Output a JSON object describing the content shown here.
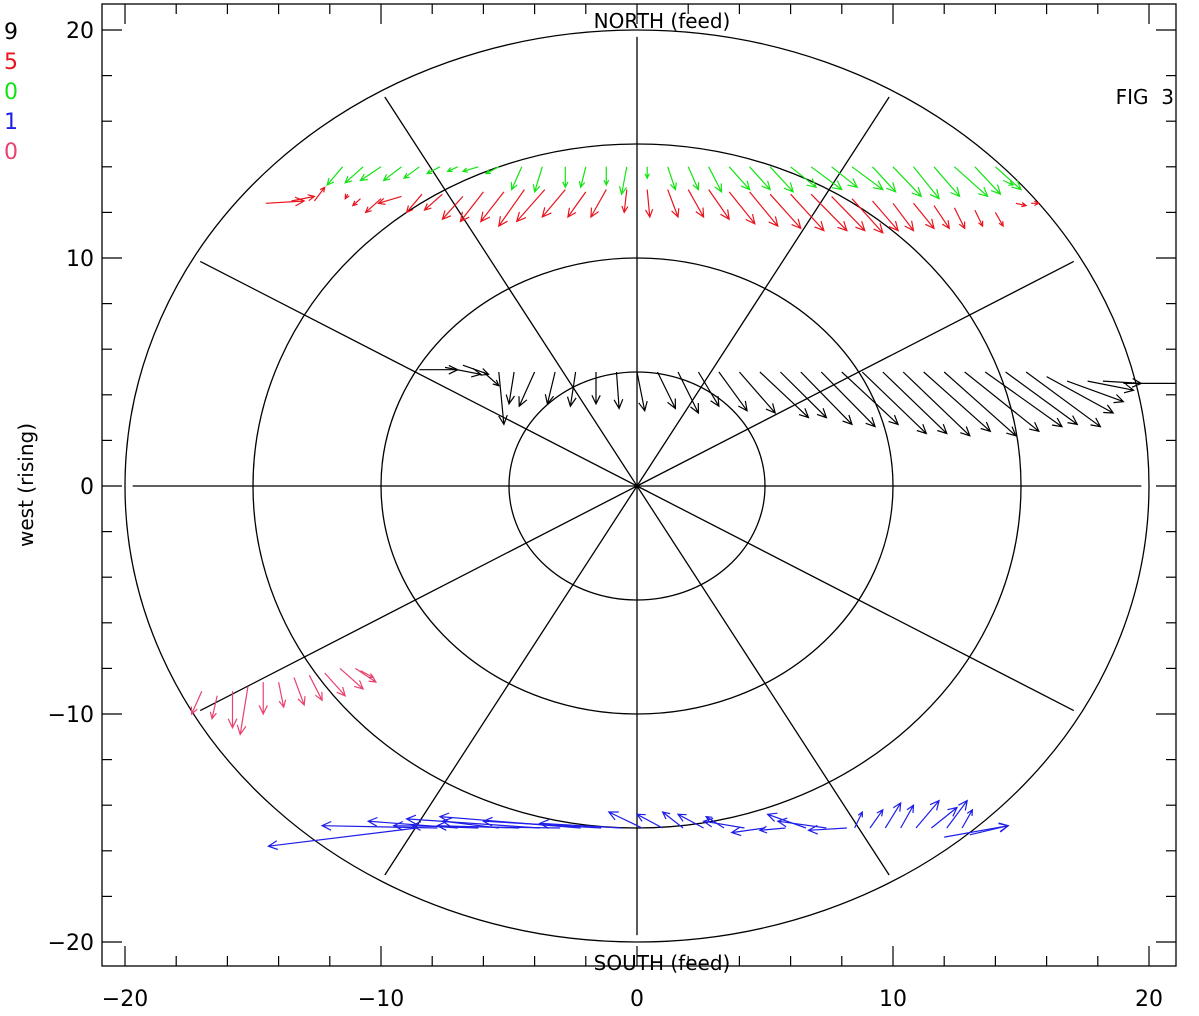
{
  "chart_data": {
    "type": "scatter",
    "subtype": "polar-vector-field",
    "figure_label": "FIG  3",
    "ylabel": "west (rising)",
    "xlabel": "",
    "top_label": "NORTH (feed)",
    "bottom_label": "SOUTH (feed)",
    "xlim": [
      -21,
      21
    ],
    "ylim": [
      -21,
      21
    ],
    "x_ticks": [
      -20,
      -10,
      0,
      10,
      20
    ],
    "y_ticks": [
      -20,
      -10,
      0,
      10,
      20
    ],
    "x_tick_labels": [
      "−20",
      "−10",
      "0",
      "10",
      "20"
    ],
    "y_tick_labels": [
      "−20",
      "−10",
      "0",
      "10",
      "20"
    ],
    "rings": [
      5,
      10,
      15,
      20
    ],
    "spoke_angles_deg": [
      0,
      30,
      60,
      90,
      120,
      150,
      180,
      210,
      240,
      270,
      300,
      330
    ],
    "spoke_length": 19.7,
    "left_legend": [
      {
        "label": "9",
        "color": "#000000"
      },
      {
        "label": "5",
        "color": "#e8141e"
      },
      {
        "label": "0",
        "color": "#13e313"
      },
      {
        "label": "1",
        "color": "#1e1ee8"
      },
      {
        "label": "0",
        "color": "#e8426e"
      }
    ],
    "series": [
      {
        "color": "#13e313",
        "vectors": [
          [
            -11.5,
            14,
            -0.6,
            -0.8
          ],
          [
            -10.7,
            14,
            -0.7,
            -0.7
          ],
          [
            -10,
            14,
            -0.8,
            -0.6
          ],
          [
            -9.2,
            14,
            -0.7,
            -0.6
          ],
          [
            -8.5,
            14,
            -0.6,
            -0.5
          ],
          [
            -7.7,
            14,
            -0.5,
            -0.3
          ],
          [
            -7,
            14,
            -0.4,
            -0.2
          ],
          [
            -6.2,
            14,
            -0.6,
            -0.2
          ],
          [
            -5.4,
            14,
            -0.5,
            -0.3
          ],
          [
            -4.5,
            14,
            -0.4,
            -1.0
          ],
          [
            -3.7,
            14,
            -0.3,
            -1.1
          ],
          [
            -2.8,
            14,
            0.0,
            -0.9
          ],
          [
            -2.0,
            14,
            -0.2,
            -0.9
          ],
          [
            -1.2,
            14,
            0.0,
            -0.8
          ],
          [
            -0.4,
            14,
            -0.2,
            -1.2
          ],
          [
            0.4,
            14,
            0.0,
            -0.5
          ],
          [
            1.2,
            14,
            0.3,
            -1.0
          ],
          [
            2.0,
            14,
            0.4,
            -1.0
          ],
          [
            2.8,
            14,
            0.5,
            -1.1
          ],
          [
            3.6,
            14,
            0.8,
            -1.0
          ],
          [
            4.4,
            14,
            0.8,
            -1.0
          ],
          [
            5.2,
            14,
            0.9,
            -1.1
          ],
          [
            6.0,
            14,
            1.0,
            -0.9
          ],
          [
            6.8,
            14,
            1.2,
            -1.0
          ],
          [
            7.6,
            14,
            1.0,
            -0.9
          ],
          [
            8.4,
            14,
            1.2,
            -1.0
          ],
          [
            9.2,
            14,
            0.9,
            -1.1
          ],
          [
            10.0,
            14,
            1.1,
            -1.3
          ],
          [
            10.8,
            14,
            1.0,
            -1.4
          ],
          [
            11.6,
            14,
            1.0,
            -1.3
          ],
          [
            12.4,
            14,
            1.3,
            -1.3
          ],
          [
            13.2,
            14,
            1.0,
            -1.2
          ],
          [
            14.0,
            14,
            1.0,
            -1.0
          ],
          [
            14.3,
            13.4,
            0.4,
            -0.2
          ]
        ]
      },
      {
        "color": "#e8141e",
        "vectors": [
          [
            -14.5,
            12.4,
            1.5,
            0.1
          ],
          [
            -13.5,
            12.5,
            0.9,
            0.2
          ],
          [
            -12.6,
            12.5,
            0.4,
            0.6
          ],
          [
            -11.3,
            12.8,
            -0.1,
            -0.2
          ],
          [
            -10.8,
            12.6,
            -0.3,
            -0.3
          ],
          [
            -10.0,
            12.6,
            -0.6,
            -0.6
          ],
          [
            -9.2,
            12.7,
            -0.9,
            -0.3
          ],
          [
            -8.4,
            12.8,
            -0.6,
            -0.8
          ],
          [
            -7.6,
            12.8,
            -0.7,
            -0.7
          ],
          [
            -6.8,
            12.7,
            -0.8,
            -1.0
          ],
          [
            -6.0,
            12.9,
            -0.9,
            -1.3
          ],
          [
            -5.2,
            12.9,
            -0.9,
            -1.3
          ],
          [
            -4.4,
            13.0,
            -1.0,
            -1.6
          ],
          [
            -3.6,
            13.0,
            -1.1,
            -1.4
          ],
          [
            -2.8,
            13.0,
            -0.9,
            -1.2
          ],
          [
            -2.0,
            12.9,
            -0.7,
            -1.1
          ],
          [
            -1.2,
            13.0,
            -0.6,
            -1.2
          ],
          [
            -0.4,
            13.0,
            -0.1,
            -1.0
          ],
          [
            0.4,
            13.0,
            0.1,
            -1.2
          ],
          [
            1.2,
            13.0,
            0.4,
            -1.2
          ],
          [
            2.0,
            13.0,
            0.6,
            -1.2
          ],
          [
            2.8,
            13.0,
            0.8,
            -1.3
          ],
          [
            3.6,
            12.9,
            1.0,
            -1.4
          ],
          [
            4.4,
            12.9,
            1.1,
            -1.5
          ],
          [
            5.2,
            12.8,
            1.2,
            -1.5
          ],
          [
            6.0,
            12.8,
            1.3,
            -1.6
          ],
          [
            6.8,
            12.8,
            1.4,
            -1.6
          ],
          [
            7.6,
            12.7,
            1.3,
            -1.5
          ],
          [
            8.4,
            12.6,
            1.2,
            -1.5
          ],
          [
            9.2,
            12.5,
            1.0,
            -1.3
          ],
          [
            10.0,
            12.4,
            0.8,
            -1.2
          ],
          [
            10.8,
            12.4,
            0.8,
            -1.1
          ],
          [
            11.6,
            12.3,
            0.6,
            -1.0
          ],
          [
            12.4,
            12.2,
            0.4,
            -0.9
          ],
          [
            13.2,
            12.1,
            0.3,
            -0.7
          ],
          [
            14.0,
            12.0,
            0.3,
            -0.6
          ],
          [
            14.8,
            12.4,
            0.4,
            -0.1
          ],
          [
            15.4,
            12.4,
            0.3,
            0.0
          ]
        ]
      },
      {
        "color": "#000000",
        "vectors": [
          [
            -8.5,
            5.1,
            1.5,
            0.0
          ],
          [
            -7.5,
            5.2,
            1.4,
            -0.3
          ],
          [
            -6.8,
            5.3,
            1.0,
            -0.4
          ],
          [
            -6.0,
            5.0,
            0.6,
            -0.6
          ],
          [
            -5.4,
            5.0,
            0.2,
            -2.3
          ],
          [
            -4.8,
            5.0,
            -0.2,
            -1.4
          ],
          [
            -4.0,
            5.0,
            -0.6,
            -1.5
          ],
          [
            -3.2,
            5.0,
            -0.3,
            -1.4
          ],
          [
            -2.4,
            5.0,
            -0.2,
            -1.5
          ],
          [
            -1.6,
            5.0,
            0.0,
            -1.4
          ],
          [
            -0.8,
            5.0,
            0.1,
            -1.6
          ],
          [
            0.0,
            5.0,
            0.3,
            -1.7
          ],
          [
            0.8,
            5.0,
            0.7,
            -1.6
          ],
          [
            1.6,
            5.0,
            0.8,
            -1.8
          ],
          [
            2.4,
            5.0,
            0.8,
            -1.5
          ],
          [
            3.2,
            5.0,
            1.1,
            -1.7
          ],
          [
            4.0,
            5.0,
            1.4,
            -1.8
          ],
          [
            4.8,
            5.0,
            1.9,
            -2.0
          ],
          [
            5.6,
            5.0,
            1.8,
            -2.0
          ],
          [
            6.4,
            5.0,
            2.0,
            -2.3
          ],
          [
            7.2,
            5.0,
            2.1,
            -2.4
          ],
          [
            8.0,
            5.0,
            2.2,
            -2.3
          ],
          [
            8.8,
            5.0,
            2.5,
            -2.7
          ],
          [
            9.6,
            5.0,
            2.5,
            -2.7
          ],
          [
            10.4,
            5.0,
            2.6,
            -2.8
          ],
          [
            11.2,
            5.0,
            2.6,
            -2.6
          ],
          [
            12.0,
            5.0,
            2.8,
            -2.8
          ],
          [
            12.8,
            5.0,
            2.9,
            -2.6
          ],
          [
            13.6,
            5.0,
            3.0,
            -2.4
          ],
          [
            14.4,
            5.0,
            2.8,
            -2.3
          ],
          [
            15.2,
            5.0,
            2.9,
            -2.4
          ],
          [
            16.0,
            4.8,
            2.6,
            -1.6
          ],
          [
            16.8,
            4.6,
            2.2,
            -0.9
          ],
          [
            17.6,
            4.6,
            1.8,
            -0.4
          ],
          [
            18.2,
            4.6,
            1.5,
            -0.1
          ],
          [
            19.0,
            4.5,
            3.0,
            0.0
          ]
        ]
      },
      {
        "color": "#1e1ee8",
        "vectors": [
          [
            -8.6,
            -15.0,
            -5.8,
            -0.8
          ],
          [
            -7.8,
            -15.0,
            -4.5,
            0.1
          ],
          [
            -7.0,
            -15.0,
            -3.5,
            0.3
          ],
          [
            -6.2,
            -15.0,
            -2.6,
            0.1
          ],
          [
            -5.4,
            -15.0,
            -2.2,
            0.3
          ],
          [
            -4.6,
            -15.0,
            -3.2,
            0.1
          ],
          [
            -3.8,
            -15.0,
            -5.2,
            0.4
          ],
          [
            -3.0,
            -15.0,
            -6.5,
            0.1
          ],
          [
            -2.2,
            -15.0,
            -5.5,
            0.5
          ],
          [
            -1.4,
            -15.0,
            -4.6,
            0.3
          ],
          [
            -0.6,
            -15.0,
            -3.2,
            0.2
          ],
          [
            0.2,
            -15.0,
            -1.3,
            0.7
          ],
          [
            1.0,
            -15.0,
            -1.0,
            0.6
          ],
          [
            1.8,
            -15.0,
            -0.8,
            0.7
          ],
          [
            2.6,
            -15.0,
            -1.0,
            0.6
          ],
          [
            3.4,
            -15.0,
            -0.7,
            0.5
          ],
          [
            4.2,
            -15.0,
            -1.6,
            0.3
          ],
          [
            5.0,
            -15.0,
            -1.3,
            -0.2
          ],
          [
            5.8,
            -15.0,
            -1.0,
            -0.1
          ],
          [
            6.6,
            -15.0,
            -1.5,
            0.6
          ],
          [
            7.4,
            -15.0,
            -1.9,
            0.3
          ],
          [
            8.2,
            -15.0,
            -1.5,
            -0.1
          ],
          [
            8.5,
            -15.0,
            0.3,
            0.7
          ],
          [
            9.1,
            -15.0,
            0.5,
            0.8
          ],
          [
            9.7,
            -15.0,
            0.6,
            1.1
          ],
          [
            10.3,
            -15.0,
            0.5,
            1.0
          ],
          [
            10.9,
            -15.0,
            0.9,
            1.2
          ],
          [
            11.5,
            -15.0,
            1.0,
            0.9
          ],
          [
            12.1,
            -15.0,
            0.8,
            1.2
          ],
          [
            12.7,
            -15.0,
            0.4,
            0.8
          ],
          [
            12.0,
            -15.4,
            2.5,
            0.5
          ],
          [
            13.0,
            -15.3,
            1.5,
            0.4
          ]
        ]
      },
      {
        "color": "#e8426e",
        "vectors": [
          [
            -17.0,
            -9.0,
            -0.4,
            -1.0
          ],
          [
            -16.4,
            -9.2,
            -0.2,
            -1.0
          ],
          [
            -15.8,
            -9.0,
            0.0,
            -1.6
          ],
          [
            -15.2,
            -8.8,
            -0.3,
            -2.1
          ],
          [
            -14.6,
            -8.6,
            0.0,
            -1.4
          ],
          [
            -14.0,
            -8.6,
            0.2,
            -1.1
          ],
          [
            -13.4,
            -8.4,
            0.4,
            -1.2
          ],
          [
            -12.8,
            -8.3,
            0.5,
            -1.1
          ],
          [
            -12.2,
            -8.2,
            0.8,
            -1.0
          ],
          [
            -11.6,
            -8.0,
            0.9,
            -0.9
          ],
          [
            -11.0,
            -8.0,
            0.8,
            -0.6
          ],
          [
            -10.8,
            -8.1,
            0.5,
            -0.3
          ]
        ]
      }
    ]
  }
}
